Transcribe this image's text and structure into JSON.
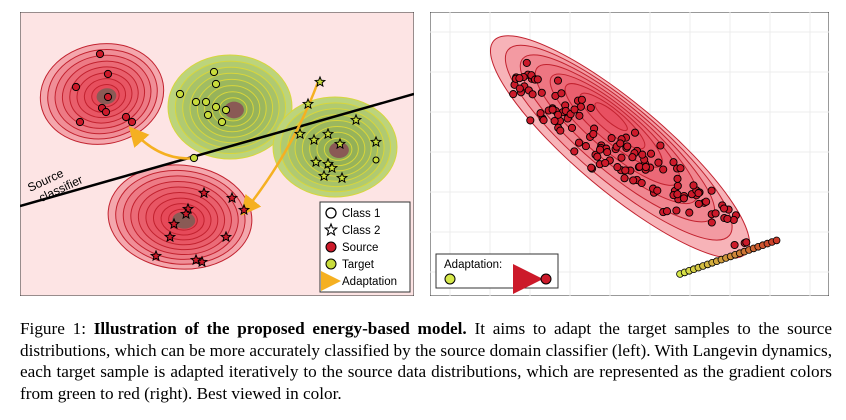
{
  "left": {
    "classifier_label_1": "Source",
    "classifier_label_2": "classifier",
    "legend": [
      {
        "label": "Class 1",
        "icon": "circle-icon"
      },
      {
        "label": "Class 2",
        "icon": "star-icon"
      },
      {
        "label": "Source",
        "icon": "red-dot-icon",
        "color": "#cc1a2a"
      },
      {
        "label": "Target",
        "icon": "green-dot-icon",
        "color": "#c8dc3c"
      },
      {
        "label": "Adaptation",
        "icon": "orange-arrow-icon",
        "color": "#f5b021"
      }
    ]
  },
  "right": {
    "legend_label": "Adaptation:",
    "gradient_start": "#d6e84a",
    "gradient_end": "#cc1a2a"
  },
  "caption": {
    "prefix": "Figure 1: ",
    "bold": "Illustration of the proposed energy-based model.",
    "text": " It aims to adapt the target samples to the source distributions, which can be more accurately classified by the source domain classifier (left). With Langevin dynamics, each target sample is adapted iteratively to the source data distributions, which are represented as the gradient colors from green to red (right). Best viewed in color."
  },
  "colors": {
    "source": "#cc1a2a",
    "target": "#c8dc3c",
    "adaptation": "#f5b021",
    "panel_bg": "#fde4e4"
  }
}
